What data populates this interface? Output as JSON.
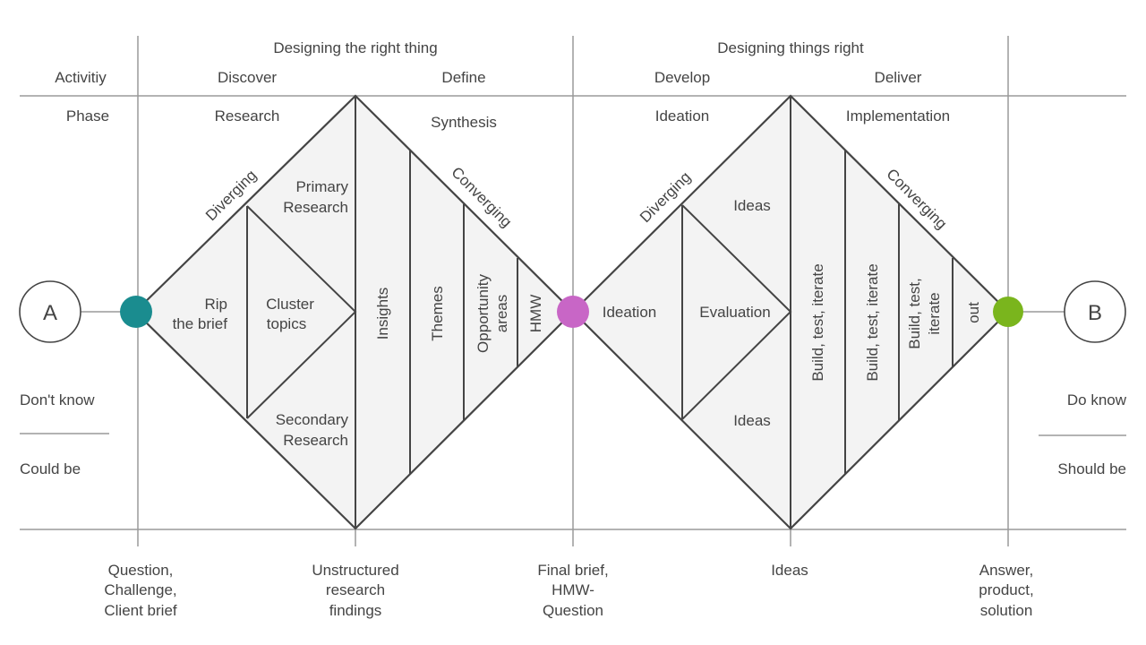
{
  "header": {
    "group_left": "Designing the right thing",
    "group_right": "Designing things right",
    "activity_label": "Activitiy",
    "phase_label": "Phase",
    "activities": [
      "Discover",
      "Define",
      "Develop",
      "Deliver"
    ],
    "phases": [
      "Research",
      "Synthesis",
      "Ideation",
      "Implementation"
    ]
  },
  "start": {
    "label": "A",
    "state_1": "Don't know",
    "state_2": "Could be"
  },
  "end": {
    "label": "B",
    "state_1": "Do know",
    "state_2": "Should be"
  },
  "diamond1": {
    "diverging": "Diverging",
    "converging": "Converging",
    "rip": [
      "Rip",
      "the brief"
    ],
    "cluster": [
      "Cluster",
      "topics"
    ],
    "primary": [
      "Primary",
      "Research"
    ],
    "secondary": [
      "Secondary",
      "Research"
    ],
    "insights": "Insights",
    "themes": "Themes",
    "opportunity": [
      "Opportunity",
      "areas"
    ],
    "hmw": "HMW"
  },
  "diamond2": {
    "diverging": "Diverging",
    "converging": "Converging",
    "ideation": "Ideation",
    "evaluation": "Evaluation",
    "ideas_top": "Ideas",
    "ideas_bottom": "Ideas",
    "build1": "Build, test, iterate",
    "build2": "Build, test, iterate",
    "build3": [
      "Build, test,",
      "iterate"
    ],
    "out": "out"
  },
  "outputs": {
    "o1": [
      "Question,",
      "Challenge,",
      "Client brief"
    ],
    "o2": [
      "Unstructured",
      "research",
      "findings"
    ],
    "o3": [
      "Final brief,",
      "HMW-",
      "Question"
    ],
    "o4": [
      "Ideas"
    ],
    "o5": [
      "Answer,",
      "product,",
      "solution"
    ]
  },
  "colors": {
    "start_dot": "#1a8c8f",
    "mid_dot": "#c866c6",
    "end_dot": "#7ab51d",
    "fill": "#f3f3f3"
  }
}
